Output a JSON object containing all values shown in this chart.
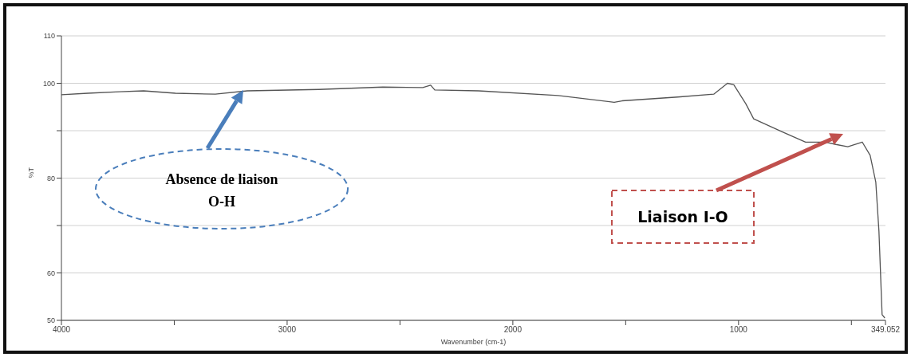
{
  "chart_data": {
    "type": "line",
    "xlabel": "Wavenumber (cm-1)",
    "ylabel": "%T",
    "x": [
      4000,
      3883,
      3742,
      3636,
      3495,
      3318,
      3177,
      2859,
      2576,
      2399,
      2364,
      2346,
      2152,
      1799,
      1551,
      1516,
      1269,
      1110,
      1049,
      1021,
      968,
      933,
      809,
      703,
      615,
      569,
      516,
      452,
      417,
      392,
      378,
      364,
      352
    ],
    "series": [
      {
        "color": "#555555",
        "values": [
          97.6,
          97.9,
          98.2,
          98.4,
          97.9,
          97.7,
          98.4,
          98.7,
          99.2,
          99.1,
          99.6,
          98.6,
          98.4,
          97.4,
          96.0,
          96.3,
          97.1,
          97.7,
          100.0,
          99.7,
          95.7,
          92.5,
          89.8,
          87.6,
          87.6,
          87.1,
          86.6,
          87.6,
          84.8,
          79.2,
          68.8,
          51.2,
          50.5
        ]
      }
    ],
    "xlim": [
      4000,
      349.052
    ],
    "xticks": [
      4000,
      {
        "value": 3500,
        "label": null
      },
      3000,
      {
        "value": 2500,
        "label": null
      },
      2000,
      {
        "value": 1500,
        "label": null
      },
      1000,
      {
        "value": 500,
        "label": null
      },
      349.052
    ],
    "ylim": [
      50,
      110
    ],
    "yticks": [
      50,
      60,
      {
        "value": 70,
        "label": null
      },
      80,
      {
        "value": 90,
        "label": null
      },
      100,
      110
    ],
    "grid": "y",
    "marker": "none",
    "line_style": "solid",
    "annotations": [
      "Absence de liaison O-H",
      "Liaison I-O"
    ]
  }
}
